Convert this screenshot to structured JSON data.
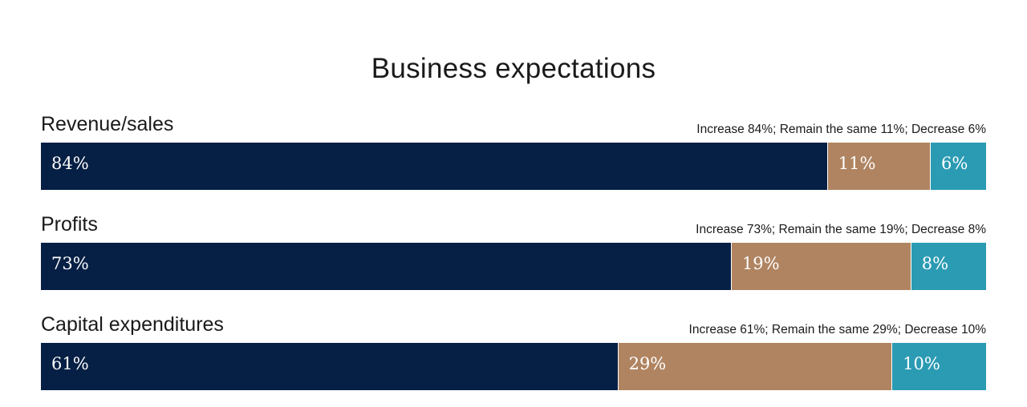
{
  "chart_data": {
    "type": "bar",
    "orientation": "horizontal",
    "stacked": true,
    "normalized": true,
    "title": "Business expectations",
    "categories": [
      "Revenue/sales",
      "Profits",
      "Capital expenditures"
    ],
    "series": [
      {
        "name": "Increase",
        "color": "#061f44",
        "values": [
          84,
          73,
          61
        ],
        "labels": [
          "84%",
          "73%",
          "61%"
        ]
      },
      {
        "name": "Remain the same",
        "color": "#b08461",
        "values": [
          11,
          19,
          29
        ],
        "labels": [
          "11%",
          "19%",
          "29%"
        ]
      },
      {
        "name": "Decrease",
        "color": "#2b9bb3",
        "values": [
          6,
          8,
          10
        ],
        "labels": [
          "6%",
          "8%",
          "10%"
        ]
      }
    ],
    "notes": [
      "Increase 84%; Remain the same 11%; Decrease 6%",
      "Increase 73%; Remain the same 19%; Decrease 8%",
      "Increase 61%; Remain the same 29%; Decrease 10%"
    ],
    "grid": false,
    "legend": "none"
  }
}
